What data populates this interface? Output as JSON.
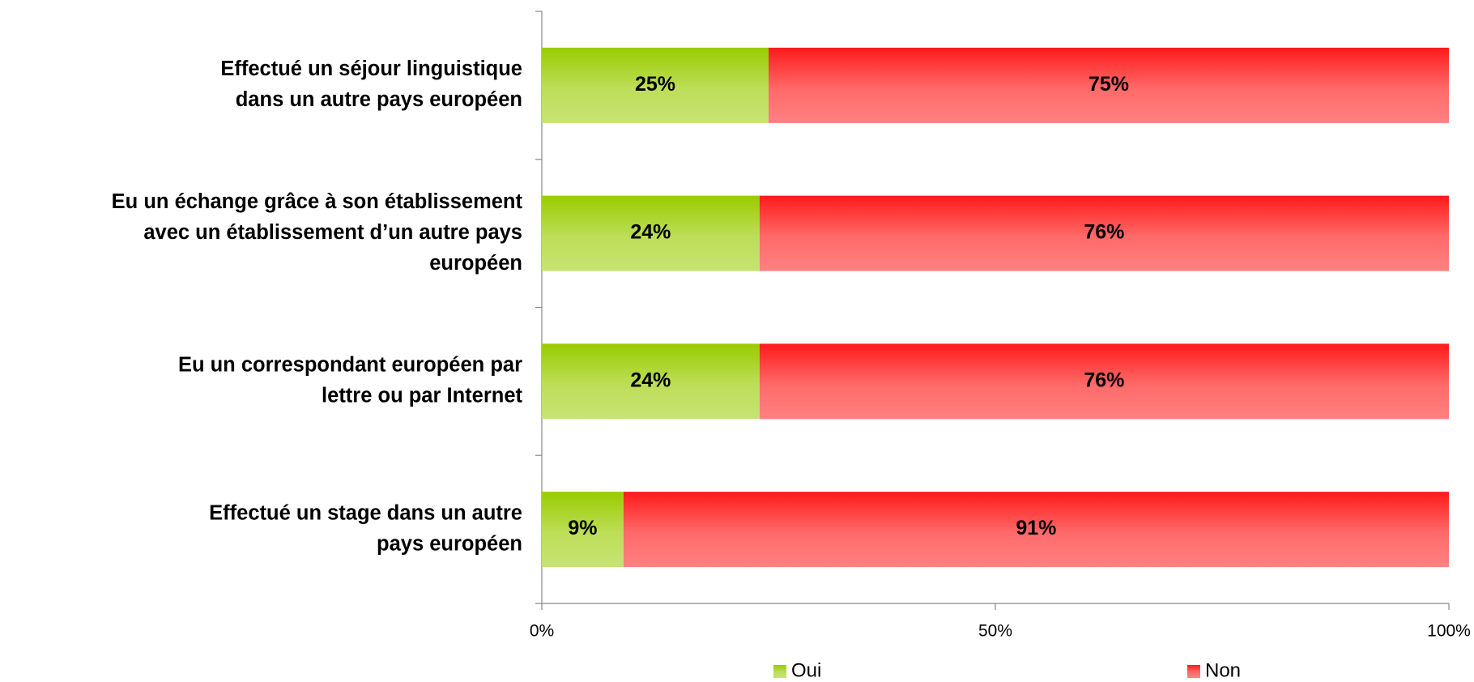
{
  "chart_data": {
    "type": "stacked-bar-horizontal",
    "categories": [
      [
        "Effectué un séjour linguistique",
        "dans un autre pays européen"
      ],
      [
        "Eu un échange grâce à son établissement",
        "avec un établissement d’un autre pays",
        "européen"
      ],
      [
        "Eu un correspondant européen par",
        "lettre ou par Internet"
      ],
      [
        "Effectué un stage dans un autre",
        "pays européen"
      ]
    ],
    "series": [
      {
        "name": "Oui",
        "color": "#99cc00",
        "values": [
          25,
          24,
          24,
          9
        ],
        "value_labels": [
          "25%",
          "24%",
          "24%",
          "9%"
        ]
      },
      {
        "name": "Non",
        "color": "#ff1a1a",
        "values": [
          75,
          76,
          76,
          91
        ],
        "value_labels": [
          "75%",
          "76%",
          "76%",
          "91%"
        ]
      }
    ],
    "xlim": [
      0,
      100
    ],
    "xticks": [
      {
        "value": 0,
        "label": "0%"
      },
      {
        "value": 50,
        "label": "50%"
      },
      {
        "value": 100,
        "label": "100%"
      }
    ],
    "legend": "bottom"
  }
}
